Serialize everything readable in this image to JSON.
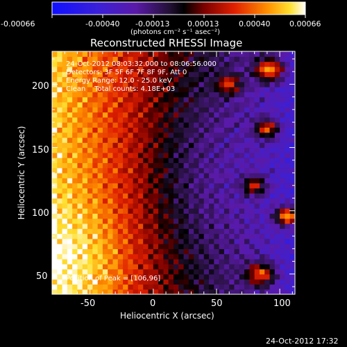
{
  "colorbar": {
    "ticks": [
      "-0.00066",
      "-0.00040",
      "-0.00013",
      "0.00013",
      "0.00040",
      "0.00066"
    ],
    "unit_label": "(photons cm⁻² s⁻¹ asec⁻²)",
    "range": [
      -0.00066,
      0.00066
    ]
  },
  "chart_data": {
    "type": "heatmap",
    "title": "Reconstructed RHESSI Image",
    "xlabel": "Heliocentric X (arcsec)",
    "ylabel": "Heliocentric Y (arcsec)",
    "xlim": [
      -80,
      112
    ],
    "ylim": [
      34,
      226
    ],
    "xticks": [
      -50,
      0,
      50,
      100
    ],
    "yticks": [
      50,
      100,
      150,
      200
    ],
    "xtick_labels": [
      "-50",
      "0",
      "50",
      "100"
    ],
    "ytick_labels": [
      "50",
      "100",
      "150",
      "200"
    ],
    "colormap": "blue-purple-black-red-yellow-white",
    "annotations": [
      "24-Oct-2012 08:03:32.000 to 08:06:56.000",
      "Detectors: 3F 5F 6F 7F 8F 9F, Att 0",
      "Energy Range: 12.0 - 25.0 keV",
      "Clean    Total counts: 4.18E+03"
    ],
    "peak_label": "Position of Peak = [106,96]",
    "peak": [
      106,
      96
    ]
  },
  "footer": {
    "timestamp": "24-Oct-2012 17:32"
  }
}
